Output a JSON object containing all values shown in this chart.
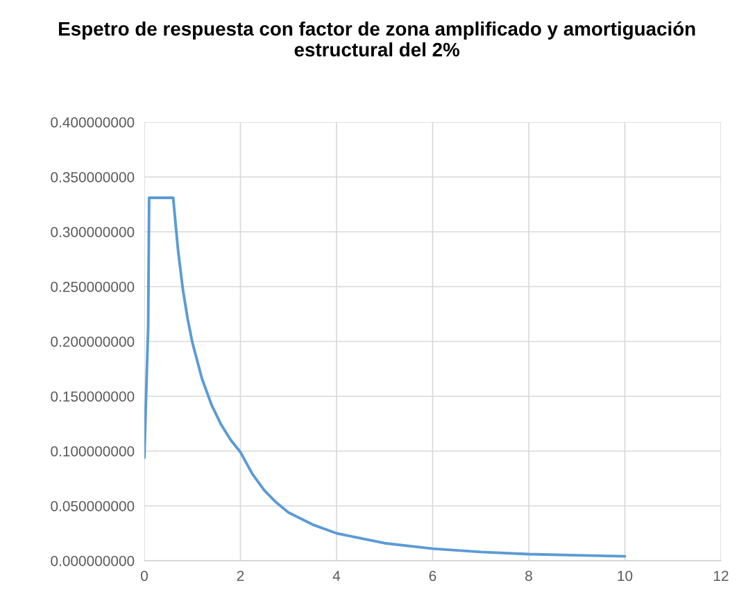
{
  "chart_data": {
    "type": "line",
    "title": "Espetro de respuesta con factor de zona amplificado y amortiguación estructural del 2%",
    "x": [
      0,
      0.05,
      0.08,
      0.1,
      0.6,
      0.7,
      0.8,
      0.9,
      1.0,
      1.2,
      1.4,
      1.6,
      1.8,
      2.0,
      2.25,
      2.5,
      2.75,
      3.0,
      3.5,
      4,
      5,
      6,
      7,
      8,
      9,
      10
    ],
    "series": [
      {
        "color": "#5b9bd5",
        "values": [
          0.094,
          0.17,
          0.213,
          0.331,
          0.331,
          0.284,
          0.248,
          0.221,
          0.199,
          0.166,
          0.142,
          0.124,
          0.11,
          0.099,
          0.079,
          0.064,
          0.053,
          0.044,
          0.033,
          0.025,
          0.016,
          0.011,
          0.008,
          0.006,
          0.005,
          0.004
        ]
      }
    ],
    "xlim": [
      0,
      12
    ],
    "xticks": [
      0,
      2,
      4,
      6,
      8,
      10,
      12
    ],
    "ylim": [
      0,
      0.4
    ],
    "yticks": [
      {
        "value": 0,
        "label": "0.000000000"
      },
      {
        "value": 0.05,
        "label": "0.050000000"
      },
      {
        "value": 0.1,
        "label": "0.100000000"
      },
      {
        "value": 0.15,
        "label": "0.150000000"
      },
      {
        "value": 0.2,
        "label": "0.200000000"
      },
      {
        "value": 0.25,
        "label": "0.250000000"
      },
      {
        "value": 0.3,
        "label": "0.300000000"
      },
      {
        "value": 0.35,
        "label": "0.350000000"
      },
      {
        "value": 0.4,
        "label": "0.400000000"
      }
    ],
    "grid": true,
    "marker": "none",
    "line_style": "solid"
  }
}
